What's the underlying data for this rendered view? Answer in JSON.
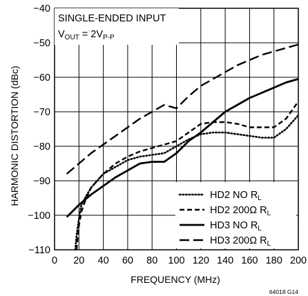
{
  "chart_data": {
    "type": "line",
    "xlabel": "FREQUENCY (MHz)",
    "ylabel": "HARMONIC DISTORTION (dBc)",
    "xlim": [
      0,
      200
    ],
    "ylim": [
      -110,
      -40
    ],
    "xticks": [
      "0",
      "20",
      "40",
      "60",
      "80",
      "100",
      "120",
      "140",
      "160",
      "180",
      "200"
    ],
    "yticks": [
      "-40",
      "-50",
      "-60",
      "-70",
      "-80",
      "-90",
      "-100",
      "-110"
    ],
    "grid": true,
    "legend_position": "bottom-right",
    "annotation": {
      "line1": "SINGLE-ENDED INPUT",
      "line2_prefix": "V",
      "line2_sub1": "OUT",
      "line2_mid": " = 2V",
      "line2_sub2": "P-P"
    },
    "figure_id": "64018 G14",
    "series": [
      {
        "name": "HD2 NO R",
        "name_sub": "L",
        "style": "dotted",
        "x": [
          17,
          18,
          20,
          22,
          25,
          30,
          40,
          50,
          60,
          70,
          80,
          90,
          100,
          110,
          120,
          130,
          140,
          150,
          160,
          170,
          180,
          190,
          200
        ],
        "y": [
          -110,
          -106,
          -101,
          -97,
          -95,
          -92,
          -88,
          -86,
          -84,
          -83,
          -82.5,
          -82,
          -80,
          -78,
          -76.5,
          -76,
          -76,
          -76.5,
          -77,
          -77.5,
          -77.5,
          -75,
          -71
        ]
      },
      {
        "name": "HD2 200Ω R",
        "name_sub": "L",
        "style": "short-dash",
        "x": [
          18,
          20,
          22,
          25,
          30,
          40,
          50,
          60,
          70,
          80,
          90,
          100,
          110,
          120,
          130,
          140,
          150,
          160,
          170,
          180,
          190,
          200
        ],
        "y": [
          -110,
          -103,
          -99,
          -96,
          -92,
          -88,
          -85,
          -83,
          -81.5,
          -80.5,
          -79.5,
          -78.5,
          -76,
          -73.5,
          -73,
          -73,
          -73.5,
          -74.5,
          -74.5,
          -74.5,
          -72,
          -67
        ]
      },
      {
        "name": "HD3 NO R",
        "name_sub": "L",
        "style": "solid",
        "x": [
          10,
          20,
          30,
          40,
          50,
          60,
          70,
          80,
          90,
          100,
          110,
          120,
          130,
          140,
          150,
          160,
          170,
          180,
          190,
          200
        ],
        "y": [
          -100.5,
          -97,
          -94,
          -91.5,
          -89,
          -87,
          -85,
          -84.5,
          -84.5,
          -82,
          -78.5,
          -76,
          -73,
          -70,
          -68,
          -66,
          -64.5,
          -63,
          -61.5,
          -60.5
        ]
      },
      {
        "name": "HD3 200Ω R",
        "name_sub": "L",
        "style": "long-dash",
        "x": [
          10,
          20,
          30,
          40,
          50,
          60,
          70,
          80,
          90,
          100,
          110,
          120,
          130,
          140,
          150,
          160,
          170,
          180,
          190,
          200
        ],
        "y": [
          -88,
          -85,
          -82,
          -79.5,
          -77,
          -74.5,
          -72,
          -70,
          -68,
          -69,
          -65.5,
          -62.5,
          -60.5,
          -58.5,
          -56.5,
          -55,
          -53.5,
          -52.5,
          -51.5,
          -50.5
        ]
      }
    ]
  }
}
